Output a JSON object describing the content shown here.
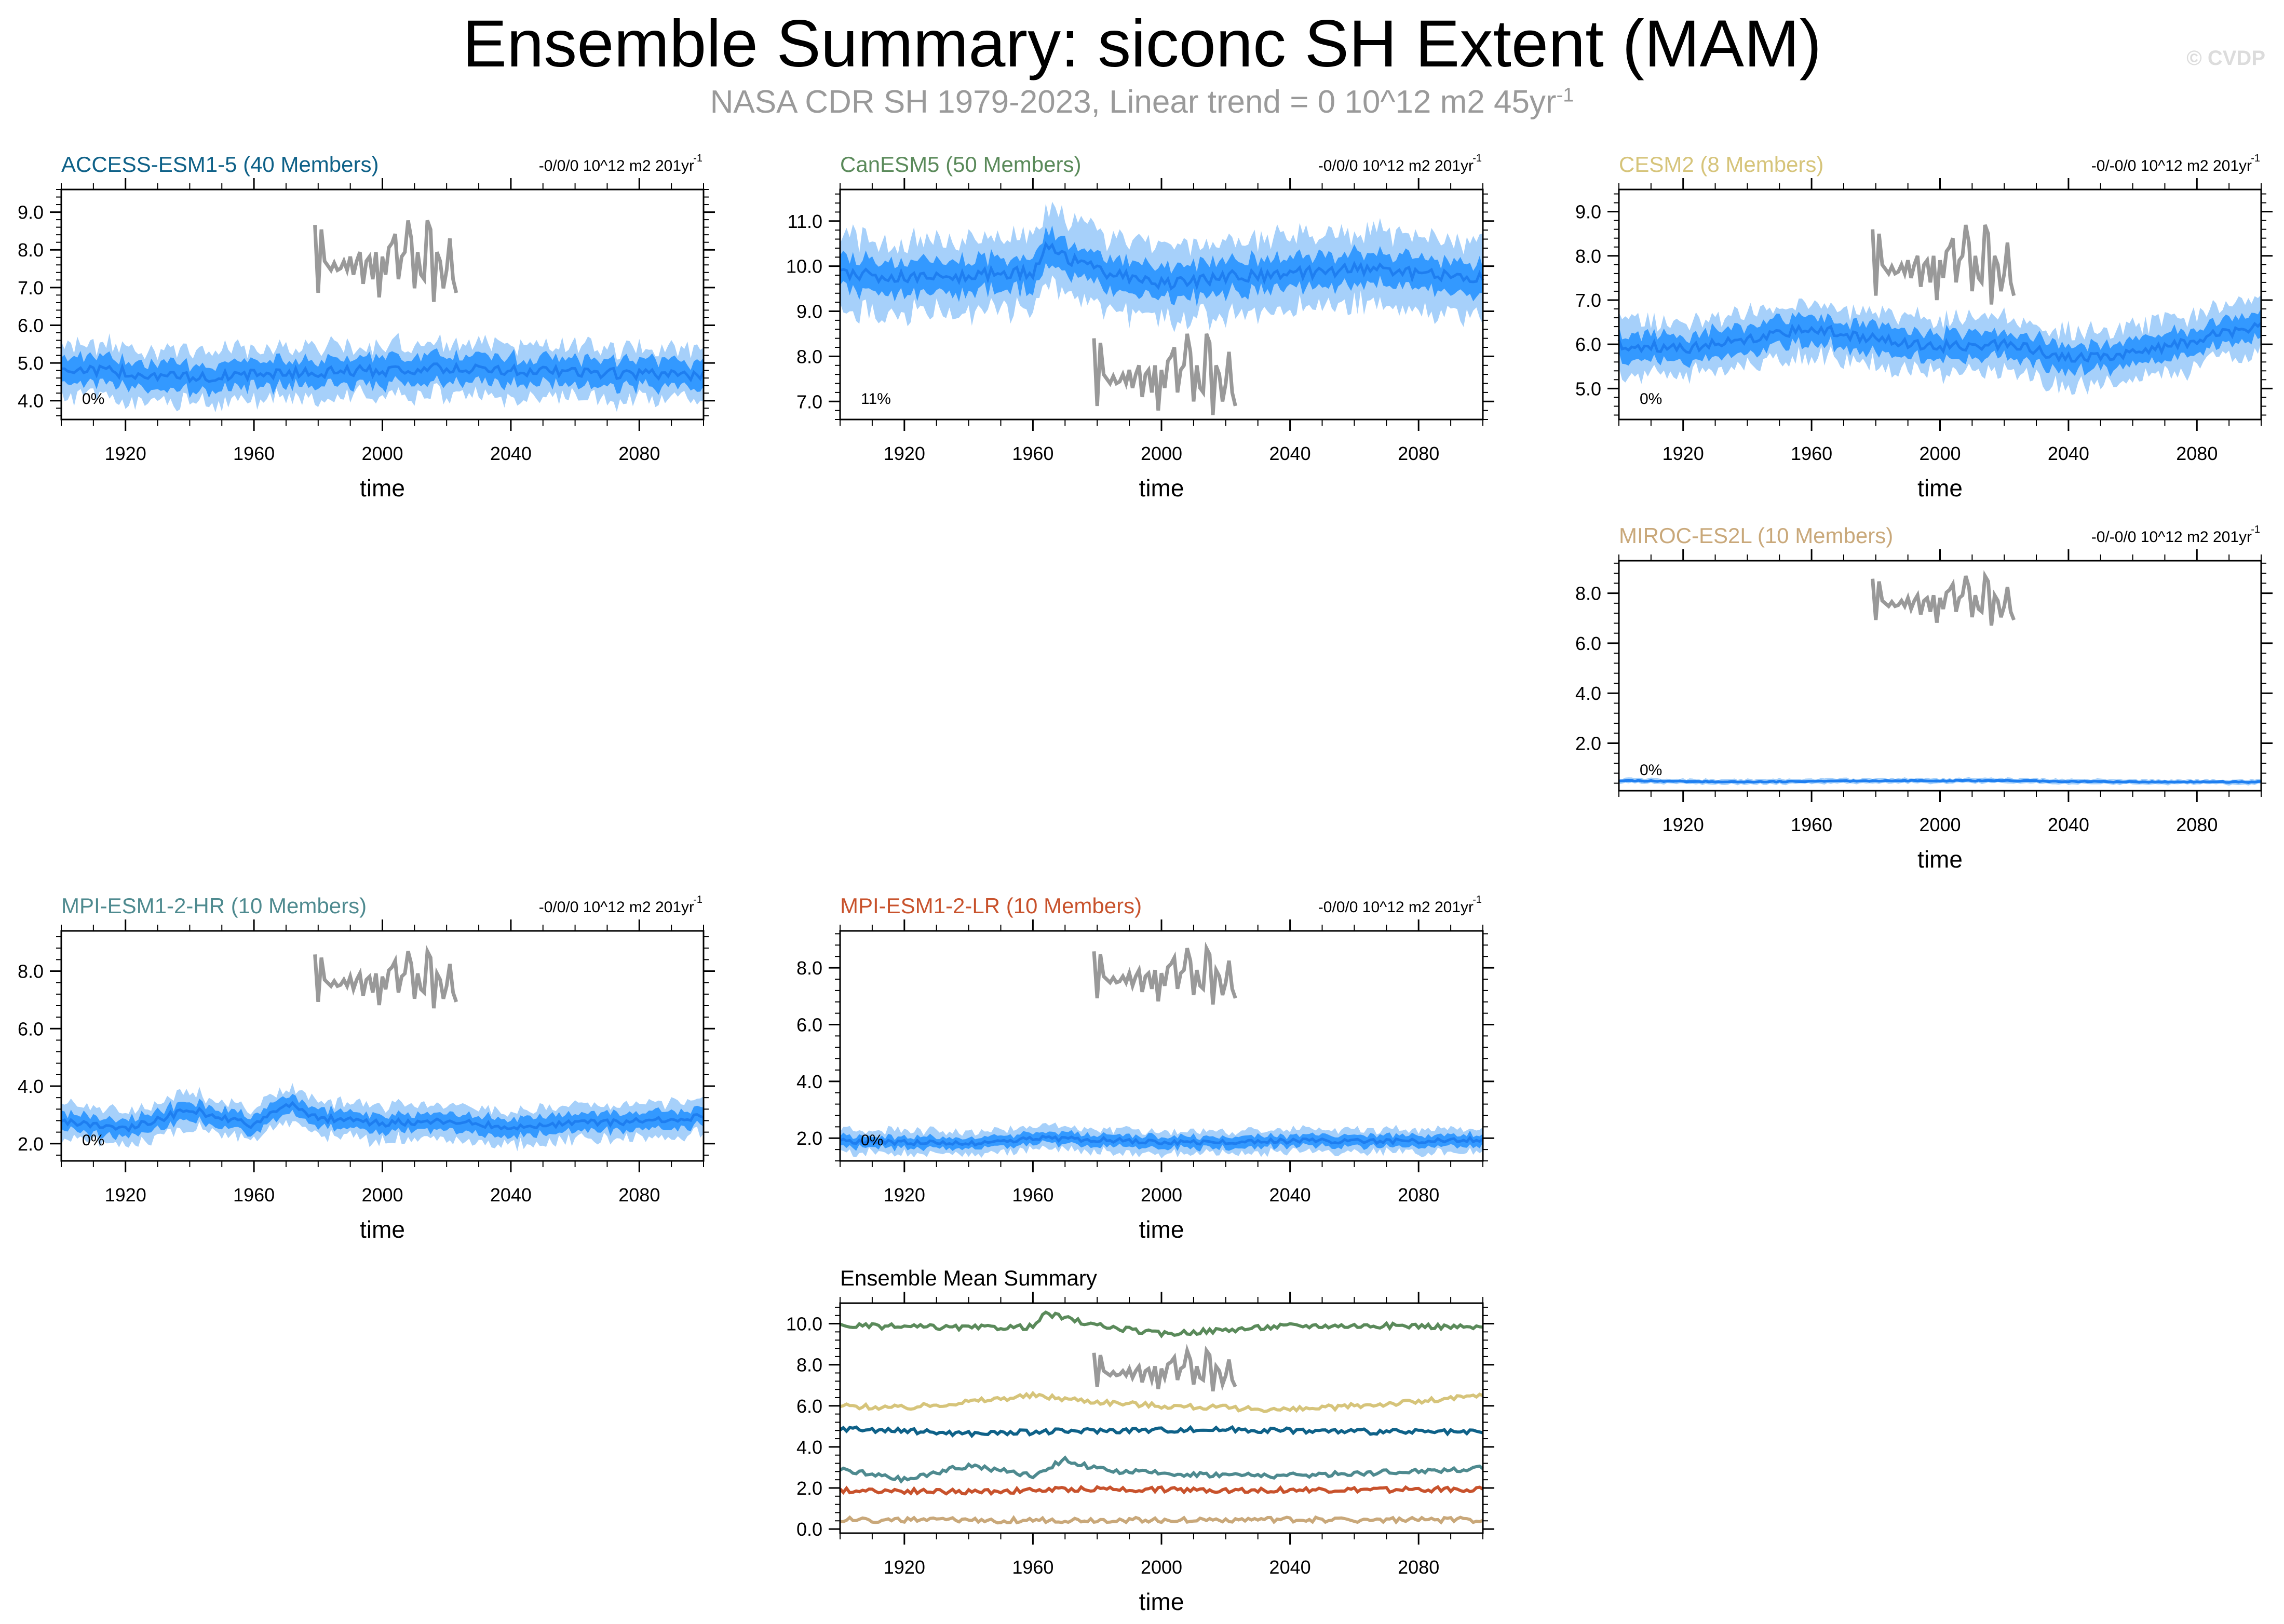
{
  "title": "Ensemble Summary: siconc SH Extent (MAM)",
  "subtitle": "NASA CDR SH 1979-2023, Linear trend = 0 10^12 m2 45yr",
  "subtitle_sup": "-1",
  "copyright": "© CVDP",
  "colors": {
    "inner_band": "#3399ff",
    "outer_band": "#a6d0fa",
    "ensemble_line": "#1e7ef0",
    "obs_line": "#999999"
  },
  "chart_data": [
    {
      "type": "line",
      "panel": "ACCESS-ESM1-5",
      "title": "ACCESS-ESM1-5 (40 Members)",
      "title_color": "#0e6188",
      "trend_label": "-0/0/0 10^12 m2 201yr",
      "trend_sup": "-1",
      "percent_label": "0%",
      "xlabel": "time",
      "ylabel": "",
      "xlim": [
        1900,
        2100
      ],
      "xticks": [
        1920,
        1960,
        2000,
        2040,
        2080
      ],
      "ylim": [
        3.5,
        9.6
      ],
      "yticks": [
        4.0,
        5.0,
        6.0,
        7.0,
        8.0,
        9.0
      ],
      "ensemble_mean": {
        "x": [
          1900,
          1920,
          1940,
          1960,
          1980,
          2000,
          2020,
          2040,
          2060,
          2080,
          2100
        ],
        "y": [
          4.85,
          4.75,
          4.6,
          4.7,
          4.75,
          4.8,
          4.85,
          4.8,
          4.75,
          4.7,
          4.65
        ]
      },
      "inner_spread": 0.35,
      "outer_spread": 0.7,
      "observations": {
        "x_start": 1979,
        "x_end": 2023,
        "y_top": 8.9,
        "y_bottom": 6.5
      }
    },
    {
      "type": "line",
      "panel": "CanESM5",
      "title": "CanESM5 (50 Members)",
      "title_color": "#5a8a5a",
      "trend_label": "-0/0/0 10^12 m2 201yr",
      "trend_sup": "-1",
      "percent_label": "11%",
      "xlabel": "time",
      "ylabel": "",
      "xlim": [
        1900,
        2100
      ],
      "xticks": [
        1920,
        1960,
        2000,
        2040,
        2080
      ],
      "ylim": [
        6.6,
        11.7
      ],
      "yticks": [
        7.0,
        8.0,
        9.0,
        10.0,
        11.0
      ],
      "ensemble_mean": {
        "x": [
          1900,
          1920,
          1940,
          1960,
          1964,
          1980,
          2000,
          2020,
          2040,
          2060,
          2080,
          2100
        ],
        "y": [
          9.85,
          9.75,
          9.8,
          9.85,
          10.4,
          9.9,
          9.6,
          9.75,
          9.85,
          9.95,
          9.85,
          9.75
        ]
      },
      "inner_spread": 0.35,
      "outer_spread": 0.8,
      "observations": {
        "x_start": 1979,
        "x_end": 2023,
        "y_top": 8.6,
        "y_bottom": 6.6
      }
    },
    {
      "type": "line",
      "panel": "CESM2",
      "title": "CESM2 (8 Members)",
      "title_color": "#d6c47a",
      "trend_label": "-0/-0/0 10^12 m2 201yr",
      "trend_sup": "-1",
      "percent_label": "0%",
      "xlabel": "time",
      "ylabel": "",
      "xlim": [
        1900,
        2100
      ],
      "xticks": [
        1920,
        1960,
        2000,
        2040,
        2080
      ],
      "ylim": [
        4.3,
        9.5
      ],
      "yticks": [
        5.0,
        6.0,
        7.0,
        8.0,
        9.0
      ],
      "ensemble_mean": {
        "x": [
          1900,
          1920,
          1940,
          1960,
          1980,
          2000,
          2020,
          2040,
          2060,
          2080,
          2100
        ],
        "y": [
          6.0,
          5.9,
          6.1,
          6.4,
          6.1,
          5.95,
          6.0,
          5.7,
          5.8,
          6.1,
          6.45
        ]
      },
      "inner_spread": 0.3,
      "outer_spread": 0.6,
      "observations": {
        "x_start": 1979,
        "x_end": 2023,
        "y_top": 8.8,
        "y_bottom": 6.8
      }
    },
    {
      "type": "line",
      "panel": "MIROC-ES2L",
      "title": "MIROC-ES2L (10 Members)",
      "title_color": "#c9a87a",
      "trend_label": "-0/-0/0 10^12 m2 201yr",
      "trend_sup": "-1",
      "percent_label": "0%",
      "xlabel": "time",
      "ylabel": "",
      "xlim": [
        1900,
        2100
      ],
      "xticks": [
        1920,
        1960,
        2000,
        2040,
        2080
      ],
      "ylim": [
        0.1,
        9.3
      ],
      "yticks": [
        2.0,
        4.0,
        6.0,
        8.0
      ],
      "ensemble_mean": {
        "x": [
          1900,
          1940,
          1980,
          2020,
          2060,
          2100
        ],
        "y": [
          0.5,
          0.45,
          0.5,
          0.5,
          0.45,
          0.45
        ]
      },
      "inner_spread": 0.05,
      "outer_spread": 0.1,
      "observations": {
        "x_start": 1979,
        "x_end": 2023,
        "y_top": 8.8,
        "y_bottom": 6.6
      }
    },
    {
      "type": "line",
      "panel": "MPI-ESM1-2-HR",
      "title": "MPI-ESM1-2-HR (10 Members)",
      "title_color": "#4e8a8f",
      "trend_label": "-0/0/0 10^12 m2 201yr",
      "trend_sup": "-1",
      "percent_label": "0%",
      "xlabel": "time",
      "ylabel": "",
      "xlim": [
        1900,
        2100
      ],
      "xticks": [
        1920,
        1960,
        2000,
        2040,
        2080
      ],
      "ylim": [
        1.4,
        9.4
      ],
      "yticks": [
        2.0,
        4.0,
        6.0,
        8.0
      ],
      "ensemble_mean": {
        "x": [
          1900,
          1920,
          1940,
          1960,
          1970,
          1980,
          2000,
          2020,
          2040,
          2060,
          2080,
          2100
        ],
        "y": [
          2.8,
          2.5,
          3.2,
          2.6,
          3.4,
          2.9,
          2.7,
          2.8,
          2.6,
          2.7,
          2.8,
          2.95
        ]
      },
      "inner_spread": 0.3,
      "outer_spread": 0.6,
      "observations": {
        "x_start": 1979,
        "x_end": 2023,
        "y_top": 8.8,
        "y_bottom": 6.6
      }
    },
    {
      "type": "line",
      "panel": "MPI-ESM1-2-LR",
      "title": "MPI-ESM1-2-LR (10 Members)",
      "title_color": "#c8522c",
      "trend_label": "-0/0/0 10^12 m2 201yr",
      "trend_sup": "-1",
      "percent_label": "0%",
      "xlabel": "time",
      "ylabel": "",
      "xlim": [
        1900,
        2100
      ],
      "xticks": [
        1920,
        1960,
        2000,
        2040,
        2080
      ],
      "ylim": [
        1.2,
        9.3
      ],
      "yticks": [
        2.0,
        4.0,
        6.0,
        8.0
      ],
      "ensemble_mean": {
        "x": [
          1900,
          1940,
          1960,
          1980,
          2000,
          2040,
          2080,
          2100
        ],
        "y": [
          1.9,
          1.8,
          2.0,
          1.95,
          1.85,
          1.9,
          1.9,
          1.95
        ]
      },
      "inner_spread": 0.2,
      "outer_spread": 0.4,
      "observations": {
        "x_start": 1979,
        "x_end": 2023,
        "y_top": 8.8,
        "y_bottom": 6.6
      }
    },
    {
      "type": "line",
      "panel": "summary",
      "title": "Ensemble Mean Summary",
      "title_color": "#000000",
      "xlabel": "time",
      "ylabel": "",
      "xlim": [
        1900,
        2100
      ],
      "xticks": [
        1920,
        1960,
        2000,
        2040,
        2080
      ],
      "ylim": [
        -0.2,
        11.0
      ],
      "yticks": [
        0.0,
        2.0,
        4.0,
        6.0,
        8.0,
        10.0
      ],
      "series": [
        {
          "color": "#5a8a5a",
          "x": [
            1900,
            1940,
            1960,
            1964,
            1980,
            2000,
            2040,
            2080,
            2100
          ],
          "y": [
            9.9,
            9.8,
            9.85,
            10.5,
            9.9,
            9.5,
            9.9,
            9.9,
            9.8
          ]
        },
        {
          "color": "#d6c47a",
          "x": [
            1900,
            1920,
            1960,
            1980,
            2000,
            2040,
            2080,
            2100
          ],
          "y": [
            6.0,
            5.9,
            6.5,
            6.2,
            6.0,
            5.8,
            6.2,
            6.5
          ]
        },
        {
          "color": "#0e6188",
          "x": [
            1900,
            1940,
            1980,
            2020,
            2060,
            2100
          ],
          "y": [
            4.9,
            4.65,
            4.8,
            4.85,
            4.75,
            4.7
          ]
        },
        {
          "color": "#4e8a8f",
          "x": [
            1900,
            1920,
            1940,
            1960,
            1970,
            1980,
            2000,
            2040,
            2100
          ],
          "y": [
            2.9,
            2.4,
            3.1,
            2.6,
            3.4,
            2.9,
            2.7,
            2.6,
            2.95
          ]
        },
        {
          "color": "#c8522c",
          "x": [
            1900,
            1940,
            1980,
            2020,
            2060,
            2100
          ],
          "y": [
            1.9,
            1.8,
            1.95,
            1.9,
            1.9,
            1.95
          ]
        },
        {
          "color": "#c9a87a",
          "x": [
            1900,
            1960,
            2020,
            2100
          ],
          "y": [
            0.45,
            0.42,
            0.45,
            0.45
          ]
        }
      ],
      "observations": {
        "x_start": 1979,
        "x_end": 2023,
        "y_top": 8.8,
        "y_bottom": 6.6
      }
    }
  ]
}
